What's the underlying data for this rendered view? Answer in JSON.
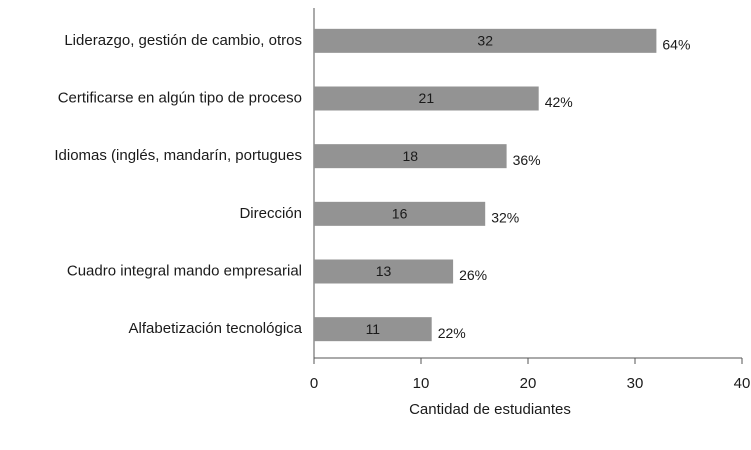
{
  "chart_data": {
    "type": "barh",
    "categories": [
      "Liderazgo, gestión de cambio, otros",
      "Certificarse en algún tipo de proceso",
      "Idiomas (inglés, mandarín, portugues",
      "Dirección",
      "Cuadro integral mando empresarial",
      "Alfabetización tecnológica"
    ],
    "values": [
      32,
      21,
      18,
      16,
      13,
      11
    ],
    "percent_labels": [
      "64%",
      "42%",
      "36%",
      "32%",
      "26%",
      "22%"
    ],
    "color": "#939393",
    "xlabel": "Cantidad de estudiantes",
    "xlim": [
      0,
      40
    ],
    "xticks": [
      0,
      10,
      20,
      30,
      40
    ]
  }
}
